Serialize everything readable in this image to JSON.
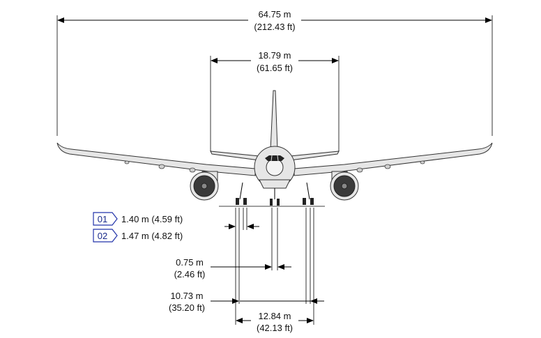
{
  "dimensions": {
    "wingspan": {
      "metric": "64.75 m",
      "imperial": "(212.43 ft)"
    },
    "tail_span": {
      "metric": "18.79 m",
      "imperial": "(61.65 ft)"
    },
    "nose_gear_width": {
      "metric": "0.75 m",
      "imperial": "(2.46 ft)"
    },
    "main_gear_track": {
      "metric": "10.73 m",
      "imperial": "(35.20 ft)"
    },
    "outer_gear_width": {
      "metric": "12.84 m",
      "imperial": "(42.13 ft)"
    }
  },
  "notes": [
    {
      "tag": "01",
      "value": "1.40 m (4.59 ft)"
    },
    {
      "tag": "02",
      "value": "1.47 m (4.82 ft)"
    }
  ],
  "colors": {
    "note_border": "#2233aa",
    "note_text": "#1a2a8a",
    "aircraft_fill": "#e6e6e6"
  }
}
